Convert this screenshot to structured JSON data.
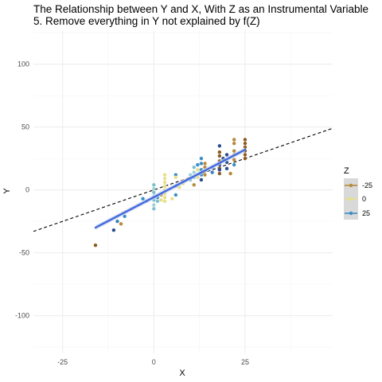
{
  "chart_data": {
    "type": "scatter",
    "title_lines": [
      "The Relationship between Y and X, With Z as an Instrumental Variable",
      "5. Remove everything in Y not explained by f(Z)"
    ],
    "xlabel": "X",
    "ylabel": "Y",
    "xlim": [
      -33,
      49
    ],
    "ylim": [
      -130,
      127
    ],
    "x_ticks": [
      -25,
      0,
      25
    ],
    "y_ticks": [
      -100,
      -50,
      0,
      50,
      100
    ],
    "grid": true,
    "legend": {
      "title": "Z",
      "placement": "right",
      "entries": [
        "-25",
        "0",
        "25"
      ],
      "colors": [
        "#b58a3a",
        "#e7e08a",
        "#3a8fc9"
      ]
    },
    "points": [
      {
        "x": -16,
        "y": -44,
        "c": "#8b5a20"
      },
      {
        "x": -11,
        "y": -32,
        "c": "#2a4b8c"
      },
      {
        "x": -10,
        "y": -25,
        "c": "#3a7fc0"
      },
      {
        "x": -9,
        "y": -27,
        "c": "#b58a3a"
      },
      {
        "x": -8,
        "y": -21,
        "c": "#3a8fc9"
      },
      {
        "x": -3,
        "y": -7,
        "c": "#3a8fc9"
      },
      {
        "x": -2,
        "y": -9,
        "c": "#7cc0cf"
      },
      {
        "x": 0,
        "y": -15,
        "c": "#7cc0cf"
      },
      {
        "x": 0,
        "y": -12,
        "c": "#9ed3d8"
      },
      {
        "x": 0,
        "y": -8,
        "c": "#7cc0cf"
      },
      {
        "x": 0,
        "y": -5,
        "c": "#9ed3d8"
      },
      {
        "x": 0,
        "y": -2,
        "c": "#7cc0cf"
      },
      {
        "x": 0,
        "y": 1,
        "c": "#9ed3d8"
      },
      {
        "x": 0,
        "y": 4,
        "c": "#7cc0cf"
      },
      {
        "x": 1,
        "y": -6,
        "c": "#3a8fc9"
      },
      {
        "x": 1,
        "y": -9,
        "c": "#7cc0cf"
      },
      {
        "x": 2,
        "y": -4,
        "c": "#b58a3a"
      },
      {
        "x": 2,
        "y": -8,
        "c": "#e7e08a"
      },
      {
        "x": 3,
        "y": -9,
        "c": "#e7e08a"
      },
      {
        "x": 3,
        "y": -6,
        "c": "#e7e08a"
      },
      {
        "x": 3,
        "y": -3,
        "c": "#e7e08a"
      },
      {
        "x": 3,
        "y": 0,
        "c": "#e7e08a"
      },
      {
        "x": 3,
        "y": 3,
        "c": "#e7e08a"
      },
      {
        "x": 3,
        "y": 6,
        "c": "#e7e08a"
      },
      {
        "x": 3,
        "y": 9,
        "c": "#e7e08a"
      },
      {
        "x": 3,
        "y": 12,
        "c": "#e7e08a"
      },
      {
        "x": 5,
        "y": -7,
        "c": "#e7e08a"
      },
      {
        "x": 6,
        "y": -4,
        "c": "#3a8fc9"
      },
      {
        "x": 6,
        "y": 3,
        "c": "#3a8fc9"
      },
      {
        "x": 6,
        "y": 12,
        "c": "#3a8fc9"
      },
      {
        "x": 6,
        "y": 10,
        "c": "#e7e08a"
      },
      {
        "x": 7,
        "y": 2,
        "c": "#e7e08a"
      },
      {
        "x": 8,
        "y": 7,
        "c": "#b58a3a"
      },
      {
        "x": 8,
        "y": 5,
        "c": "#e7e08a"
      },
      {
        "x": 10,
        "y": 8,
        "c": "#7cc0cf"
      },
      {
        "x": 10,
        "y": 12,
        "c": "#9ed3d8"
      },
      {
        "x": 11,
        "y": 4,
        "c": "#b58a3a"
      },
      {
        "x": 11,
        "y": 10,
        "c": "#7cc0cf"
      },
      {
        "x": 11,
        "y": 14,
        "c": "#9ed3d8"
      },
      {
        "x": 11,
        "y": 18,
        "c": "#7cc0cf"
      },
      {
        "x": 12,
        "y": 10,
        "c": "#e7e08a"
      },
      {
        "x": 12,
        "y": 16,
        "c": "#e7e08a"
      },
      {
        "x": 12,
        "y": 20,
        "c": "#3a8fc9"
      },
      {
        "x": 13,
        "y": 8,
        "c": "#2a4b8c"
      },
      {
        "x": 13,
        "y": 12,
        "c": "#3a8fc9"
      },
      {
        "x": 13,
        "y": 16,
        "c": "#3a8fc9"
      },
      {
        "x": 13,
        "y": 21,
        "c": "#3a8fc9"
      },
      {
        "x": 13,
        "y": 25,
        "c": "#3a8fc9"
      },
      {
        "x": 14,
        "y": 12,
        "c": "#b58a3a"
      },
      {
        "x": 14,
        "y": 15,
        "c": "#b58a3a"
      },
      {
        "x": 14,
        "y": 18,
        "c": "#b58a3a"
      },
      {
        "x": 14,
        "y": 21,
        "c": "#b58a3a"
      },
      {
        "x": 16,
        "y": 14,
        "c": "#3a7fc0"
      },
      {
        "x": 16,
        "y": 18,
        "c": "#3a8fc9"
      },
      {
        "x": 18,
        "y": 13,
        "c": "#8b5a20"
      },
      {
        "x": 18,
        "y": 17,
        "c": "#8b5a20"
      },
      {
        "x": 18,
        "y": 20,
        "c": "#8b5a20"
      },
      {
        "x": 18,
        "y": 23,
        "c": "#8b5a20"
      },
      {
        "x": 18,
        "y": 27,
        "c": "#8b5a20"
      },
      {
        "x": 18,
        "y": 30,
        "c": "#8b5a20"
      },
      {
        "x": 18,
        "y": 35,
        "c": "#2a4b8c"
      },
      {
        "x": 18,
        "y": 20,
        "c": "#2a4b8c"
      },
      {
        "x": 18,
        "y": 16,
        "c": "#2a4b8c"
      },
      {
        "x": 19,
        "y": 25,
        "c": "#2a4b8c"
      },
      {
        "x": 20,
        "y": 22,
        "c": "#2a4b8c"
      },
      {
        "x": 20,
        "y": 28,
        "c": "#2a4b8c"
      },
      {
        "x": 20,
        "y": 17,
        "c": "#2a4b8c"
      },
      {
        "x": 21,
        "y": 13,
        "c": "#b58a3a"
      },
      {
        "x": 22,
        "y": 24,
        "c": "#b58a3a"
      },
      {
        "x": 22,
        "y": 28,
        "c": "#b58a3a"
      },
      {
        "x": 22,
        "y": 31,
        "c": "#b58a3a"
      },
      {
        "x": 22,
        "y": 37,
        "c": "#b58a3a"
      },
      {
        "x": 22,
        "y": 40,
        "c": "#b58a3a"
      },
      {
        "x": 22,
        "y": 20,
        "c": "#3a8fc9"
      },
      {
        "x": 25,
        "y": 25,
        "c": "#8b5a20"
      },
      {
        "x": 25,
        "y": 28,
        "c": "#8b5a20"
      },
      {
        "x": 25,
        "y": 31,
        "c": "#8b5a20"
      },
      {
        "x": 25,
        "y": 34,
        "c": "#8b5a20"
      },
      {
        "x": 25,
        "y": 37,
        "c": "#8b5a20"
      },
      {
        "x": 25,
        "y": 40,
        "c": "#8b5a20"
      }
    ],
    "fit_line": {
      "x": [
        -16,
        25
      ],
      "y": [
        -30,
        32
      ],
      "color": "#4169e1"
    },
    "reference_line": {
      "intercept": 0,
      "slope": 1,
      "style": "dashed",
      "color": "#000000"
    }
  }
}
